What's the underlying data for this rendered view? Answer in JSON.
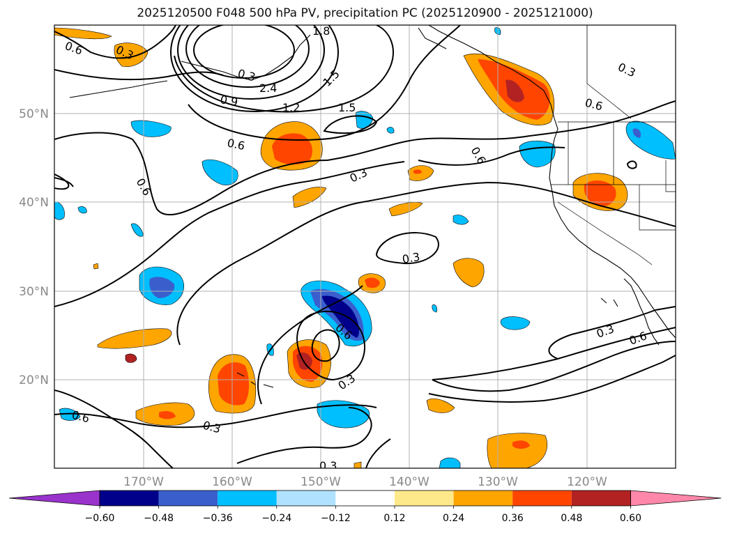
{
  "title": "2025120500 F048 500 hPa PV, precipitation PC (2025120900 - 2025121000)",
  "map": {
    "lon_labels": [
      "170°W",
      "160°W",
      "150°W",
      "140°W",
      "130°W",
      "120°W"
    ],
    "lon_values": [
      -170,
      -160,
      -150,
      -140,
      -130,
      -120
    ],
    "lat_labels": [
      "50°N",
      "40°N",
      "30°N",
      "20°N"
    ],
    "lat_values": [
      50,
      40,
      30,
      20
    ],
    "lon_range": [
      -180,
      -110
    ],
    "lat_range": [
      10,
      60
    ],
    "grid": true,
    "contour_labels": [
      "0.6",
      "0.3",
      "1.8",
      "2.4",
      "0.9",
      "1.2",
      "1.5",
      "1.5",
      "0.6",
      "0.6",
      "0.6",
      "0.3",
      "0.3",
      "0.3",
      "0.6",
      "0.6",
      "0.3",
      "0.3",
      "0.6",
      "0.3",
      "0.3",
      "0.6",
      "0.3"
    ]
  },
  "colorbar": {
    "tick_labels": [
      "−0.60",
      "−0.48",
      "−0.36",
      "−0.24",
      "−0.12",
      "0.12",
      "0.24",
      "0.36",
      "0.48",
      "0.60"
    ],
    "bounds": [
      -0.6,
      -0.48,
      -0.36,
      -0.24,
      -0.12,
      0.12,
      0.24,
      0.36,
      0.48,
      0.6
    ],
    "colors": [
      "#9933cc",
      "#00008b",
      "#3a5fcd",
      "#00bfff",
      "#b0e2ff",
      "#ffffff",
      "#fde98a",
      "#ffa500",
      "#ff4500",
      "#b22222",
      "#ff88aa"
    ],
    "extend": "both"
  }
}
